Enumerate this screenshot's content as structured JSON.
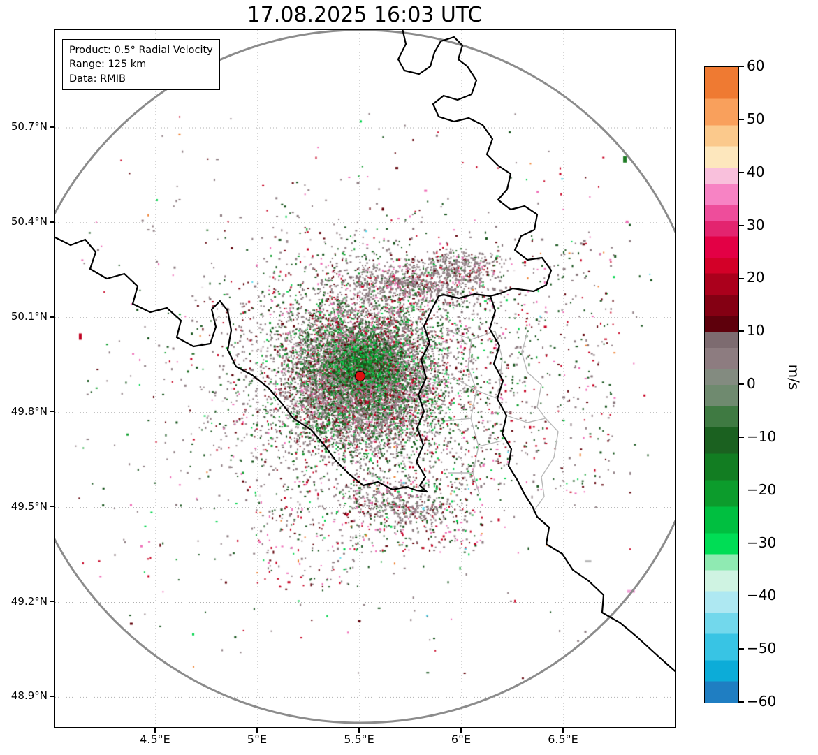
{
  "chart_data": {
    "type": "scatter",
    "title": "17.08.2025 16:03 UTC",
    "info_lines": [
      "Product: 0.5° Radial Velocity",
      "Range: 125 km",
      "Data: RMIB"
    ],
    "x_axis": {
      "range": [
        4.007,
        7.048
      ],
      "ticks": [
        {
          "v": 4.5,
          "label": "4.5°E"
        },
        {
          "v": 5.0,
          "label": "5°E"
        },
        {
          "v": 5.5,
          "label": "5.5°E"
        },
        {
          "v": 6.0,
          "label": "6°E"
        },
        {
          "v": 6.5,
          "label": "6.5°E"
        }
      ]
    },
    "y_axis": {
      "range": [
        48.806,
        51.009
      ],
      "ticks": [
        {
          "v": 50.7,
          "label": "50.7°N"
        },
        {
          "v": 50.4,
          "label": "50.4°N"
        },
        {
          "v": 50.1,
          "label": "50.1°N"
        },
        {
          "v": 49.8,
          "label": "49.8°N"
        },
        {
          "v": 49.5,
          "label": "49.5°N"
        },
        {
          "v": 49.2,
          "label": "49.2°N"
        },
        {
          "v": 48.9,
          "label": "48.9°N"
        }
      ]
    },
    "grid": true,
    "radar_site": {
      "lon": 5.505,
      "lat": 49.914,
      "range_km": 125,
      "marker_color": "#dd1111"
    },
    "range_ring_color": "#8c8c8c",
    "colorbar": {
      "label": "m/s",
      "min": -60,
      "max": 60,
      "ticks": [
        {
          "v": 60,
          "label": "60"
        },
        {
          "v": 50,
          "label": "50"
        },
        {
          "v": 40,
          "label": "40"
        },
        {
          "v": 30,
          "label": "30"
        },
        {
          "v": 20,
          "label": "20"
        },
        {
          "v": 10,
          "label": "10"
        },
        {
          "v": 0,
          "label": "0"
        },
        {
          "v": -10,
          "label": "−10"
        },
        {
          "v": -20,
          "label": "−20"
        },
        {
          "v": -30,
          "label": "−30"
        },
        {
          "v": -40,
          "label": "−40"
        },
        {
          "v": -50,
          "label": "−50"
        },
        {
          "v": -60,
          "label": "−60"
        }
      ],
      "segments": [
        {
          "hi": 60,
          "lo": 54,
          "c": "#ef7a32"
        },
        {
          "hi": 54,
          "lo": 49,
          "c": "#f9a05c"
        },
        {
          "hi": 49,
          "lo": 45,
          "c": "#fbc98c"
        },
        {
          "hi": 45,
          "lo": 41,
          "c": "#fde7bd"
        },
        {
          "hi": 41,
          "lo": 38,
          "c": "#f9c0dc"
        },
        {
          "hi": 38,
          "lo": 34,
          "c": "#f783c4"
        },
        {
          "hi": 34,
          "lo": 31,
          "c": "#ee4d9b"
        },
        {
          "hi": 31,
          "lo": 28,
          "c": "#e3246f"
        },
        {
          "hi": 28,
          "lo": 24,
          "c": "#e30045"
        },
        {
          "hi": 24,
          "lo": 21,
          "c": "#d30028"
        },
        {
          "hi": 21,
          "lo": 17,
          "c": "#ab001c"
        },
        {
          "hi": 17,
          "lo": 13,
          "c": "#840013"
        },
        {
          "hi": 13,
          "lo": 10,
          "c": "#5e000c"
        },
        {
          "hi": 10,
          "lo": 7,
          "c": "#7d6b70"
        },
        {
          "hi": 7,
          "lo": 3,
          "c": "#8d7c80"
        },
        {
          "hi": 3,
          "lo": 0,
          "c": "#838b80"
        },
        {
          "hi": 0,
          "lo": -4,
          "c": "#6f8a6f"
        },
        {
          "hi": -4,
          "lo": -8,
          "c": "#3f7a42"
        },
        {
          "hi": -8,
          "lo": -13,
          "c": "#1b6120"
        },
        {
          "hi": -13,
          "lo": -18,
          "c": "#127d22"
        },
        {
          "hi": -18,
          "lo": -23,
          "c": "#0c9c2c"
        },
        {
          "hi": -23,
          "lo": -28,
          "c": "#00bf40"
        },
        {
          "hi": -28,
          "lo": -32,
          "c": "#00dd55"
        },
        {
          "hi": -32,
          "lo": -35,
          "c": "#8feab2"
        },
        {
          "hi": -35,
          "lo": -39,
          "c": "#cff3e2"
        },
        {
          "hi": -39,
          "lo": -43,
          "c": "#aee8f2"
        },
        {
          "hi": -43,
          "lo": -47,
          "c": "#72d8ec"
        },
        {
          "hi": -47,
          "lo": -52,
          "c": "#38c4e4"
        },
        {
          "hi": -52,
          "lo": -56,
          "c": "#0cacd8"
        },
        {
          "hi": -56,
          "lo": -60,
          "c": "#1f7ec2"
        }
      ]
    },
    "echo_field": {
      "seed": 20250817,
      "palettes": {
        "core": [
          [
            "#8e7d82",
            0.26
          ],
          [
            "#9a8a8e",
            0.14
          ],
          [
            "#7f7075",
            0.06
          ],
          [
            "#a5959a",
            0.04
          ],
          [
            "#17541c",
            0.12
          ],
          [
            "#1e6b22",
            0.08
          ],
          [
            "#14a032",
            0.07
          ],
          [
            "#00d44c",
            0.03
          ],
          [
            "#600009",
            0.05
          ],
          [
            "#7d0011",
            0.04
          ],
          [
            "#c60022",
            0.05
          ],
          [
            "#ef6fb8",
            0.04
          ],
          [
            "#e8e0e4",
            0.02
          ]
        ],
        "greencap": [
          [
            "#17541c",
            0.3
          ],
          [
            "#1e6b22",
            0.15
          ],
          [
            "#14a032",
            0.25
          ],
          [
            "#00d44c",
            0.15
          ],
          [
            "#8e7d82",
            0.1
          ],
          [
            "#600009",
            0.05
          ]
        ],
        "grayblob": [
          [
            "#8e7d82",
            0.46
          ],
          [
            "#9a8a8e",
            0.22
          ],
          [
            "#7f7075",
            0.1
          ],
          [
            "#600009",
            0.06
          ],
          [
            "#1e6b22",
            0.08
          ],
          [
            "#c60022",
            0.04
          ],
          [
            "#ef6fb8",
            0.04
          ]
        ],
        "sparse": [
          [
            "#8e7d82",
            0.45
          ],
          [
            "#17541c",
            0.2
          ],
          [
            "#c60022",
            0.1
          ],
          [
            "#600009",
            0.1
          ],
          [
            "#ef6fb8",
            0.08
          ],
          [
            "#14a032",
            0.07
          ]
        ],
        "mixed": [
          [
            "#8e7d82",
            0.3
          ],
          [
            "#17541c",
            0.22
          ],
          [
            "#c60022",
            0.13
          ],
          [
            "#600009",
            0.12
          ],
          [
            "#ef6fb8",
            0.12
          ],
          [
            "#00d44c",
            0.06
          ],
          [
            "#58d8ec",
            0.02
          ],
          [
            "#ee8030",
            0.03
          ]
        ]
      },
      "clusters": [
        {
          "type": "gauss",
          "lon": 5.505,
          "lat": 49.914,
          "sx": 48,
          "sy": 46,
          "n": 6500,
          "pal": "core"
        },
        {
          "type": "gauss",
          "lon": 5.505,
          "lat": 49.914,
          "sx": 95,
          "sy": 85,
          "n": 3200,
          "pal": "core"
        },
        {
          "type": "gauss",
          "lon": 5.505,
          "lat": 49.914,
          "sx": 150,
          "sy": 130,
          "n": 1100,
          "pal": "sparse"
        },
        {
          "type": "gauss",
          "lon": 5.51,
          "lat": 49.955,
          "sx": 26,
          "sy": 18,
          "n": 900,
          "pal": "greencap"
        },
        {
          "type": "gauss",
          "lon": 5.75,
          "lat": 50.215,
          "sx": 55,
          "sy": 16,
          "n": 800,
          "pal": "grayblob"
        },
        {
          "type": "gauss",
          "lon": 6.0,
          "lat": 50.27,
          "sx": 25,
          "sy": 11,
          "n": 220,
          "pal": "grayblob"
        },
        {
          "type": "box",
          "lon0": 5.85,
          "lon1": 6.75,
          "lat0": 49.55,
          "lat1": 50.35,
          "n": 380,
          "pal": "mixed"
        },
        {
          "type": "box",
          "lon0": 5.45,
          "lon1": 6.1,
          "lat0": 49.36,
          "lat1": 49.6,
          "n": 300,
          "pal": "mixed"
        },
        {
          "type": "box",
          "lon0": 5.0,
          "lon1": 5.5,
          "lat0": 49.25,
          "lat1": 49.5,
          "n": 130,
          "pal": "mixed"
        },
        {
          "type": "box",
          "lon0": 4.1,
          "lon1": 6.95,
          "lat0": 48.95,
          "lat1": 50.75,
          "n": 320,
          "pal": "mixed"
        },
        {
          "type": "gauss",
          "lon": 5.61,
          "lat": 49.52,
          "sx": 28,
          "sy": 13,
          "n": 160,
          "pal": "grayblob"
        },
        {
          "type": "gauss",
          "lon": 5.8,
          "lat": 49.49,
          "sx": 24,
          "sy": 12,
          "n": 150,
          "pal": "grayblob"
        }
      ],
      "singles": [
        {
          "lon": 6.83,
          "lat": 49.235,
          "c": "#f3a0d8",
          "w": 11,
          "h": 4
        },
        {
          "lon": 6.8,
          "lat": 50.6,
          "c": "#1d7a22",
          "w": 5,
          "h": 9
        },
        {
          "lon": 4.13,
          "lat": 50.04,
          "c": "#c00020",
          "w": 4,
          "h": 9
        },
        {
          "lon": 6.62,
          "lat": 49.33,
          "c": "#b8b8b8",
          "w": 9,
          "h": 3
        }
      ]
    }
  }
}
